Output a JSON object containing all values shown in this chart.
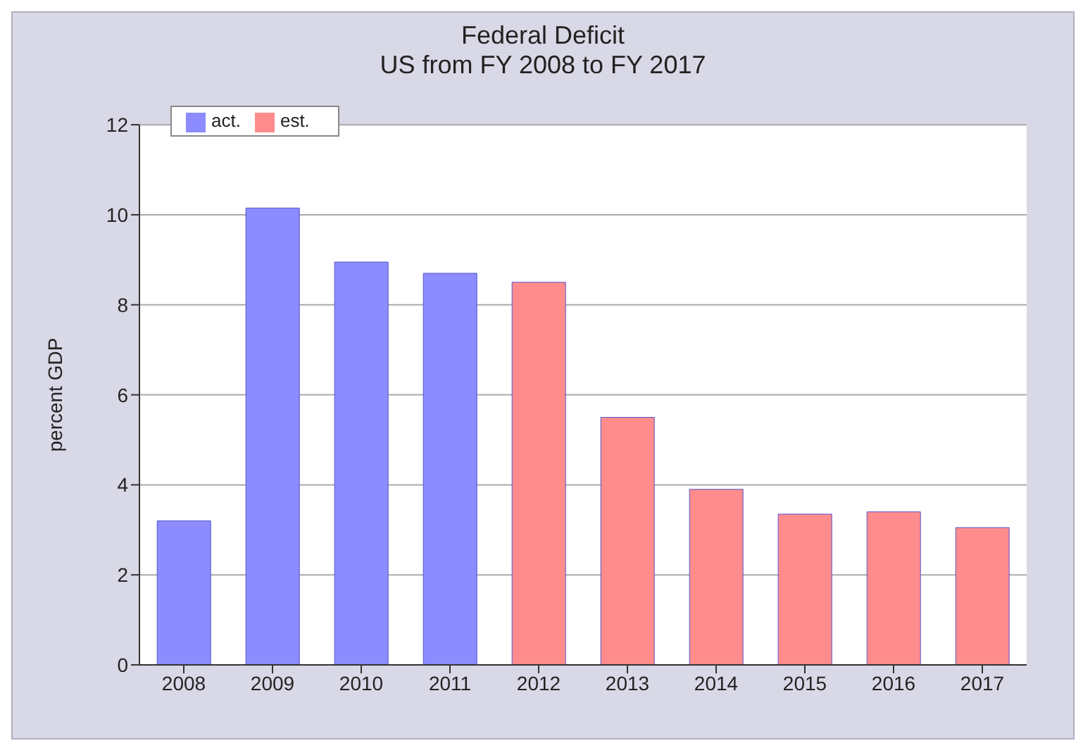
{
  "chart_data": {
    "type": "bar",
    "title": "Federal Deficit",
    "subtitle": "US from FY 2008 to FY 2017",
    "ylabel": "percent GDP",
    "categories": [
      "2008",
      "2009",
      "2010",
      "2011",
      "2012",
      "2013",
      "2014",
      "2015",
      "2016",
      "2017"
    ],
    "series": [
      {
        "name": "act.",
        "color": "#8c8cff",
        "values": [
          3.2,
          10.15,
          8.95,
          8.7,
          null,
          null,
          null,
          null,
          null,
          null
        ]
      },
      {
        "name": "est.",
        "color": "#ff8c8c",
        "values": [
          null,
          null,
          null,
          null,
          8.5,
          5.5,
          3.9,
          3.35,
          3.4,
          3.05
        ]
      }
    ],
    "stacked": true,
    "ylim": [
      0,
      12
    ],
    "yticks": [
      0,
      2,
      4,
      6,
      8,
      10,
      12
    ],
    "grid": "y",
    "legend": "top left"
  }
}
